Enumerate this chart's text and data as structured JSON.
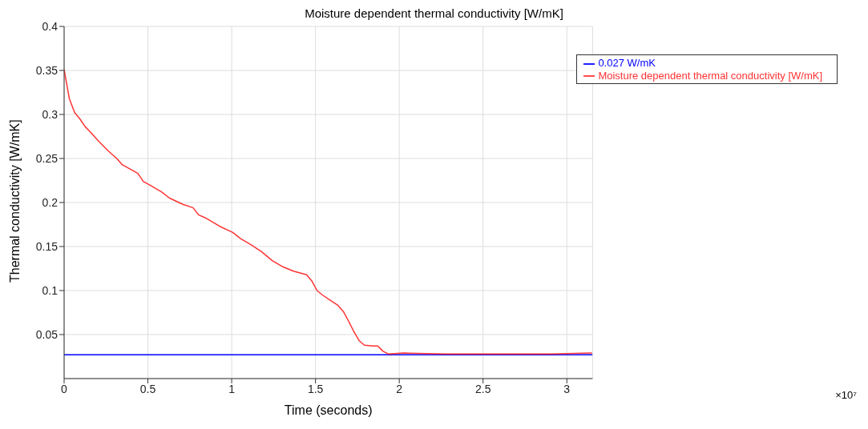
{
  "chart_data": {
    "type": "line",
    "title": "Moisture dependent thermal conductivity [W/mK]",
    "xlabel": "Time (seconds)",
    "ylabel": "Thermal conductivity [W/mK]",
    "annotations": [
      "×10⁷"
    ],
    "xlim": [
      0,
      3.1536
    ],
    "xticks": [
      0,
      0.5,
      1,
      1.5,
      2,
      2.5,
      3
    ],
    "ylim": [
      0,
      0.4
    ],
    "yticks": [
      0.05,
      0.1,
      0.15,
      0.2,
      0.25,
      0.3,
      0.35,
      0.4
    ],
    "grid": true,
    "legend": "top right",
    "marker": "none",
    "line_style": "solid",
    "series": [
      {
        "name": "0.027 W/mK",
        "color": "#0000ff",
        "x": [
          0,
          3.1536
        ],
        "values": [
          0.027,
          0.027
        ]
      },
      {
        "name": "Moisture dependent thermal conductivity [W/mK]",
        "color": "#ff3333",
        "x": [
          0,
          0.016,
          0.031,
          0.063,
          0.094,
          0.126,
          0.157,
          0.204,
          0.267,
          0.314,
          0.346,
          0.393,
          0.44,
          0.472,
          0.519,
          0.582,
          0.629,
          0.708,
          0.77,
          0.802,
          0.849,
          0.928,
          1.006,
          1.053,
          1.116,
          1.179,
          1.242,
          1.305,
          1.368,
          1.447,
          1.478,
          1.509,
          1.541,
          1.588,
          1.635,
          1.667,
          1.698,
          1.73,
          1.761,
          1.792,
          1.84,
          1.871,
          1.903,
          1.934,
          2.028,
          2.28,
          2.594,
          2.909,
          3.15
        ],
        "values": [
          0.351,
          0.334,
          0.318,
          0.302,
          0.295,
          0.286,
          0.28,
          0.27,
          0.258,
          0.25,
          0.243,
          0.238,
          0.233,
          0.224,
          0.219,
          0.212,
          0.205,
          0.198,
          0.194,
          0.186,
          0.182,
          0.173,
          0.166,
          0.159,
          0.152,
          0.144,
          0.134,
          0.127,
          0.122,
          0.118,
          0.111,
          0.1,
          0.095,
          0.089,
          0.083,
          0.076,
          0.065,
          0.053,
          0.043,
          0.038,
          0.037,
          0.037,
          0.031,
          0.028,
          0.029,
          0.028,
          0.028,
          0.028,
          0.029
        ]
      }
    ]
  }
}
